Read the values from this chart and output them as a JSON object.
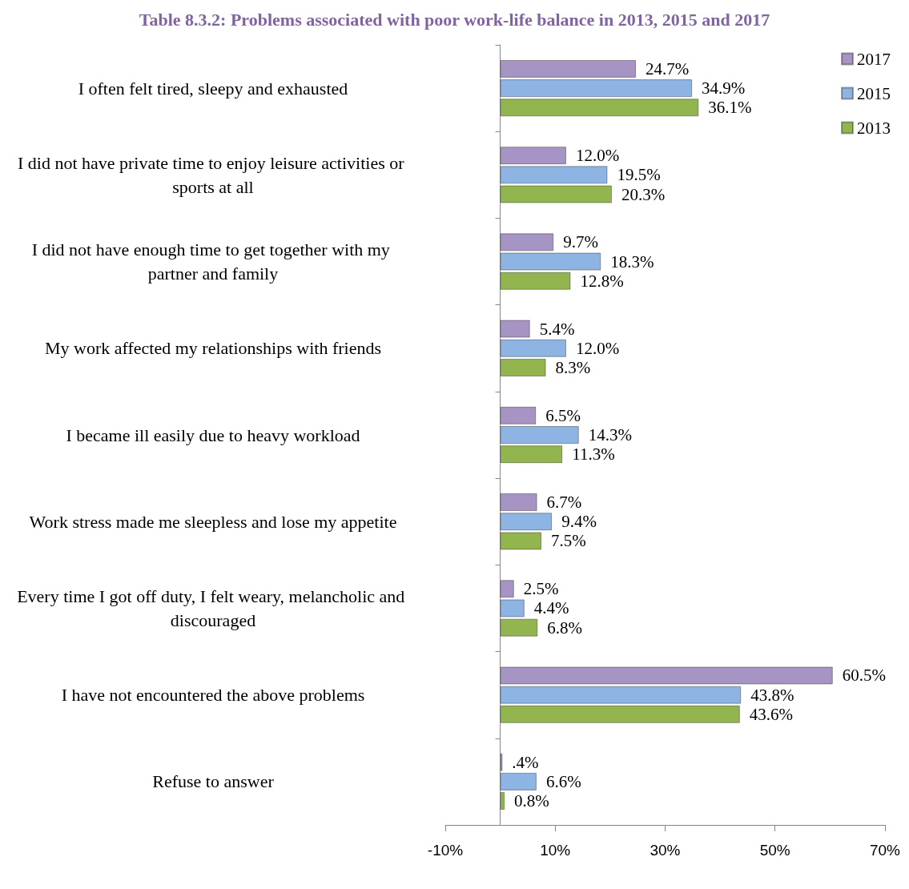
{
  "chart_data": {
    "type": "bar",
    "orientation": "horizontal",
    "title": "Table 8.3.2: Problems associated with poor work-life balance in 2013, 2015 and 2017",
    "categories": [
      "I often felt tired, sleepy and exhausted",
      "I did not have private time to enjoy leisure activities or sports at all",
      "I did not have enough time to get together with my partner and family",
      "My work affected my relationships with friends",
      "I became ill easily due to heavy workload",
      "Work stress made me sleepless and lose my appetite",
      "Every time I got off duty, I felt weary, melancholic and discouraged",
      "I have not encountered the above problems",
      "Refuse to answer"
    ],
    "series": [
      {
        "name": "2017",
        "color": "#a594c4",
        "values": [
          24.7,
          12.0,
          9.7,
          5.4,
          6.5,
          6.7,
          2.5,
          60.5,
          0.4
        ],
        "value_labels": [
          "24.7%",
          "12.0%",
          "9.7%",
          "5.4%",
          "6.5%",
          "6.7%",
          "2.5%",
          "60.5%",
          ".4%"
        ]
      },
      {
        "name": "2015",
        "color": "#8db4e2",
        "values": [
          34.9,
          19.5,
          18.3,
          12.0,
          14.3,
          9.4,
          4.4,
          43.8,
          6.6
        ],
        "value_labels": [
          "34.9%",
          "19.5%",
          "18.3%",
          "12.0%",
          "14.3%",
          "9.4%",
          "4.4%",
          "43.8%",
          "6.6%"
        ]
      },
      {
        "name": "2013",
        "color": "#92b550",
        "values": [
          36.1,
          20.3,
          12.8,
          8.3,
          11.3,
          7.5,
          6.8,
          43.6,
          0.8
        ],
        "value_labels": [
          "36.1%",
          "20.3%",
          "12.8%",
          "8.3%",
          "11.3%",
          "7.5%",
          "6.8%",
          "43.6%",
          "0.8%"
        ]
      }
    ],
    "xlim": [
      -10,
      70
    ],
    "xticks": [
      {
        "value": -10,
        "label": "-10%"
      },
      {
        "value": 10,
        "label": "10%"
      },
      {
        "value": 30,
        "label": "30%"
      },
      {
        "value": 50,
        "label": "50%"
      },
      {
        "value": 70,
        "label": "70%"
      }
    ],
    "grid": false,
    "legend": "top right"
  }
}
